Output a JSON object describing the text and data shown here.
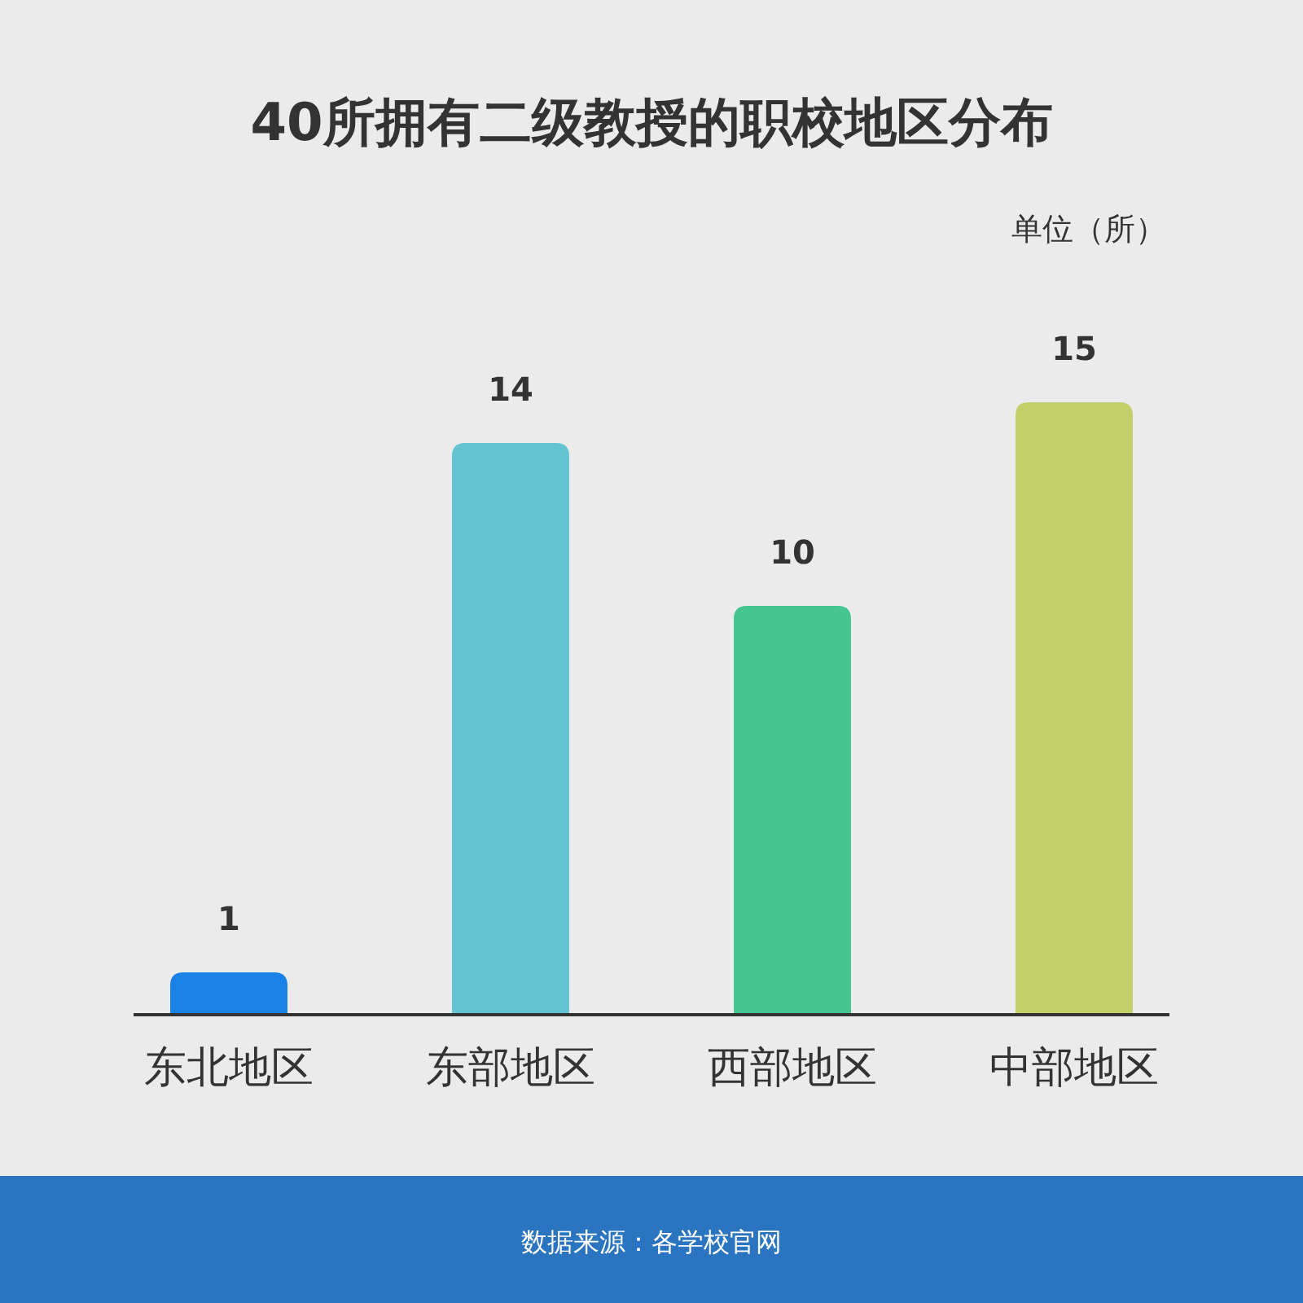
{
  "chart_data": {
    "type": "bar",
    "title": "40所拥有二级教授的职校地区分布",
    "categories": [
      "东北地区",
      "东部地区",
      "西部地区",
      "中部地区"
    ],
    "values": [
      1,
      14,
      10,
      15
    ],
    "colors": [
      "#1a82e6",
      "#63c3d0",
      "#45c690",
      "#c2cf6a"
    ],
    "data_labels": true,
    "annotations": [
      "单位（所）",
      "数据来源：各学校官网"
    ]
  }
}
